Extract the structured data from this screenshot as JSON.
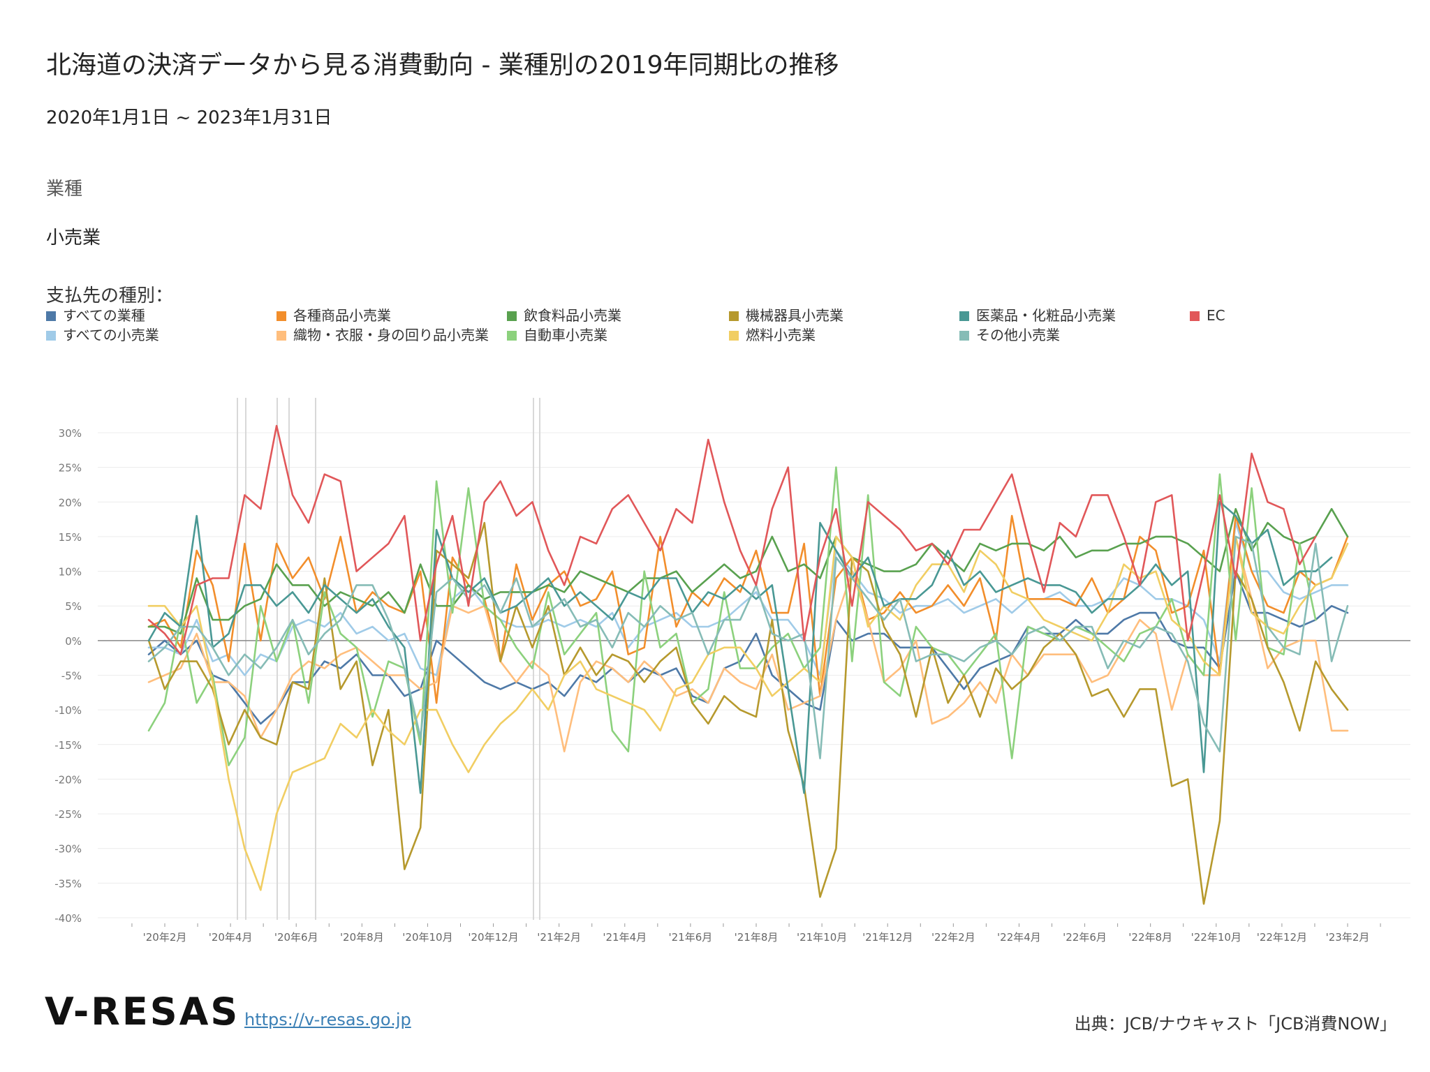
{
  "header": {
    "title": "北海道の決済データから見る消費動向 - 業種別の2019年同期比の推移",
    "period": "2020年1月1日 ~ 2023年1月31日"
  },
  "filter": {
    "label": "業種",
    "value": "小売業"
  },
  "legend": {
    "title": "支払先の種別："
  },
  "footer": {
    "logo": "V-RESAS",
    "link": "https://v-resas.go.jp",
    "source": "出典：JCB/ナウキャスト「JCB消費NOW」"
  },
  "chart_data": {
    "type": "line",
    "y_unit": "%",
    "ylim": [
      -40,
      30
    ],
    "yticks": [
      30,
      25,
      20,
      15,
      10,
      5,
      0,
      -5,
      -10,
      -15,
      -20,
      -25,
      -30,
      -35,
      -40
    ],
    "ytick_labels": [
      "30%",
      "25%",
      "20%",
      "15%",
      "10%",
      "5%",
      "0%",
      "-5%",
      "-10%",
      "-15%",
      "-20%",
      "-25%",
      "-30%",
      "-35%",
      "-40%"
    ],
    "xtick_labels": [
      "'20年2月",
      "'20年4月",
      "'20年6月",
      "'20年8月",
      "'20年10月",
      "'20年12月",
      "'21年2月",
      "'21年4月",
      "'21年6月",
      "'21年8月",
      "'21年10月",
      "'21年12月",
      "'22年2月",
      "'22年4月",
      "'22年6月",
      "'22年8月",
      "'22年10月",
      "'22年12月",
      "'23年2月"
    ],
    "x_start": "2020-01-06",
    "x_period": "weekly",
    "legend_position": "top",
    "series": [
      {
        "name": "すべての業種",
        "color": "#4e79a7",
        "values": [
          -2,
          0,
          -2,
          0,
          -5,
          -6,
          -9,
          -12,
          -10,
          -6,
          -6,
          -3,
          -4,
          -2,
          -5,
          -5,
          -8,
          -7,
          0,
          -2,
          -4,
          -6,
          -7,
          -6,
          -7,
          -6,
          -8,
          -5,
          -6,
          -4,
          -6,
          -4,
          -5,
          -4,
          -8,
          -9,
          -4,
          -3,
          1,
          -5,
          -7,
          -9,
          -10,
          3,
          0,
          1,
          1,
          -1,
          -1,
          -1,
          -4,
          -7,
          -4,
          -3,
          -2,
          2,
          1,
          1,
          3,
          1,
          1,
          3,
          4,
          4,
          0,
          -1,
          -1,
          -4,
          10,
          4,
          4,
          3,
          2,
          3,
          5,
          4
        ]
      },
      {
        "name": "すべての小売業",
        "color": "#a0cbe8",
        "values": [
          -1,
          -1,
          -2,
          3,
          -3,
          -2,
          -5,
          -2,
          -3,
          2,
          3,
          2,
          4,
          1,
          2,
          0,
          1,
          -4,
          -5,
          6,
          8,
          5,
          3,
          2,
          2,
          3,
          2,
          3,
          2,
          4,
          -1,
          2,
          3,
          4,
          2,
          2,
          3,
          5,
          7,
          3,
          3,
          0,
          -5,
          13,
          10,
          7,
          6,
          4,
          5,
          5,
          6,
          4,
          5,
          6,
          4,
          6,
          6,
          7,
          5,
          5,
          6,
          9,
          8,
          6,
          6,
          5,
          3,
          -3,
          17,
          10,
          10,
          7,
          6,
          7,
          8,
          8
        ]
      },
      {
        "name": "各種商品小売業",
        "color": "#f28e2b",
        "values": [
          2,
          3,
          -1,
          13,
          8,
          -3,
          14,
          0,
          14,
          9,
          12,
          6,
          15,
          4,
          7,
          5,
          4,
          10,
          -9,
          12,
          8,
          6,
          -3,
          11,
          3,
          8,
          10,
          5,
          6,
          10,
          -2,
          -1,
          15,
          2,
          7,
          5,
          9,
          7,
          13,
          4,
          4,
          14,
          -8,
          9,
          12,
          3,
          4,
          7,
          4,
          5,
          8,
          5,
          9,
          0,
          18,
          6,
          6,
          6,
          5,
          9,
          4,
          6,
          15,
          13,
          4,
          5,
          13,
          -5,
          18,
          10,
          5,
          4,
          10,
          8,
          9,
          15
        ]
      },
      {
        "name": "織物・衣服・身の回り品小売業",
        "color": "#ffbe7d",
        "values": [
          -6,
          -5,
          -4,
          1,
          -6,
          -6,
          -8,
          -14,
          -10,
          -5,
          -3,
          -4,
          -2,
          -1,
          -3,
          -5,
          -5,
          -7,
          -6,
          5,
          4,
          5,
          -3,
          -6,
          -3,
          -5,
          -16,
          -6,
          -3,
          -4,
          -6,
          -3,
          -5,
          -8,
          -7,
          -9,
          -4,
          -6,
          -7,
          -2,
          -10,
          -9,
          -8,
          3,
          10,
          3,
          -6,
          -4,
          0,
          -12,
          -11,
          -9,
          -6,
          -9,
          -2,
          -5,
          -2,
          -2,
          -2,
          -6,
          -5,
          -1,
          3,
          1,
          -10,
          -2,
          -5,
          -5,
          15,
          6,
          -4,
          -1,
          0,
          0,
          -13,
          -13
        ]
      },
      {
        "name": "飲食料品小売業",
        "color": "#59a14f",
        "values": [
          2,
          2,
          1,
          9,
          3,
          3,
          5,
          6,
          11,
          8,
          8,
          5,
          7,
          6,
          5,
          7,
          4,
          11,
          5,
          5,
          8,
          6,
          7,
          7,
          7,
          8,
          7,
          10,
          9,
          8,
          7,
          9,
          9,
          10,
          7,
          9,
          11,
          9,
          10,
          15,
          10,
          11,
          9,
          15,
          12,
          11,
          10,
          10,
          11,
          14,
          12,
          10,
          14,
          13,
          14,
          14,
          13,
          15,
          12,
          13,
          13,
          14,
          14,
          15,
          15,
          14,
          12,
          10,
          19,
          13,
          17,
          15,
          14,
          15,
          19,
          15
        ]
      },
      {
        "name": "自動車小売業",
        "color": "#8cd17d",
        "values": [
          -13,
          -9,
          3,
          -9,
          -5,
          -18,
          -14,
          5,
          -3,
          3,
          -9,
          7,
          1,
          -1,
          -11,
          -3,
          -4,
          -15,
          23,
          4,
          22,
          5,
          3,
          -1,
          -4,
          7,
          -2,
          1,
          4,
          -13,
          -16,
          10,
          -1,
          1,
          -9,
          -7,
          7,
          -4,
          -4,
          -1,
          1,
          -4,
          -1,
          25,
          -3,
          21,
          -6,
          -8,
          2,
          -1,
          -2,
          -5,
          -2,
          1,
          -17,
          2,
          1,
          0,
          2,
          1,
          -1,
          -3,
          1,
          2,
          6,
          -2,
          -5,
          24,
          0,
          22,
          -1,
          -2,
          14,
          3
        ]
      },
      {
        "name": "機械器具小売業",
        "color": "#b6992d",
        "values": [
          0,
          -7,
          -3,
          -3,
          -7,
          -15,
          -10,
          -14,
          -15,
          -6,
          -7,
          9,
          -7,
          -3,
          -18,
          -10,
          -33,
          -27,
          13,
          11,
          9,
          17,
          -3,
          5,
          -1,
          5,
          -5,
          -1,
          -5,
          -2,
          -3,
          -6,
          -3,
          -1,
          -9,
          -12,
          -8,
          -10,
          -11,
          3,
          -13,
          -21,
          -37,
          -30,
          12,
          10,
          2,
          -2,
          -11,
          -1,
          -9,
          -5,
          -11,
          -4,
          -7,
          -5,
          -1,
          1,
          -2,
          -8,
          -7,
          -11,
          -7,
          -7,
          -21,
          -20,
          -38,
          -26,
          10,
          6,
          -1,
          -6,
          -13,
          -3,
          -7,
          -10
        ]
      },
      {
        "name": "燃料小売業",
        "color": "#f1ce63",
        "values": [
          5,
          5,
          2,
          5,
          -6,
          -20,
          -30,
          -36,
          -25,
          -19,
          -18,
          -17,
          -12,
          -14,
          -10,
          -13,
          -15,
          -10,
          -10,
          -15,
          -19,
          -15,
          -12,
          -10,
          -7,
          -10,
          -5,
          -3,
          -7,
          -8,
          -9,
          -10,
          -13,
          -7,
          -6,
          -2,
          -1,
          -1,
          -4,
          -8,
          -6,
          -4,
          -6,
          15,
          12,
          2,
          5,
          3,
          8,
          11,
          11,
          7,
          13,
          11,
          7,
          6,
          3,
          2,
          1,
          0,
          4,
          11,
          9,
          10,
          3,
          1,
          -3,
          -5,
          15,
          4,
          2,
          1,
          5,
          8,
          9,
          14
        ]
      },
      {
        "name": "医薬品・化粧品小売業",
        "color": "#499894",
        "values": [
          0,
          4,
          2,
          18,
          -1,
          1,
          8,
          8,
          5,
          7,
          4,
          8,
          6,
          4,
          6,
          2,
          -1,
          -22,
          16,
          9,
          7,
          9,
          4,
          5,
          7,
          9,
          5,
          7,
          5,
          3,
          7,
          6,
          9,
          9,
          4,
          7,
          6,
          8,
          6,
          8,
          -7,
          -22,
          17,
          13,
          9,
          12,
          5,
          6,
          6,
          8,
          13,
          8,
          10,
          7,
          8,
          9,
          8,
          8,
          7,
          4,
          6,
          6,
          8,
          11,
          8,
          10,
          -19,
          20,
          18,
          14,
          16,
          8,
          10,
          10,
          12
        ]
      },
      {
        "name": "その他小売業",
        "color": "#86bcb6",
        "values": [
          -3,
          -1,
          2,
          2,
          -1,
          -5,
          -2,
          -4,
          -1,
          3,
          -2,
          1,
          3,
          8,
          8,
          3,
          -4,
          -14,
          7,
          9,
          6,
          8,
          4,
          9,
          2,
          4,
          6,
          2,
          3,
          -1,
          4,
          2,
          5,
          3,
          4,
          -2,
          3,
          3,
          8,
          1,
          0,
          1,
          -17,
          12,
          9,
          6,
          3,
          6,
          -3,
          -2,
          -2,
          -3,
          -1,
          0,
          -2,
          1,
          2,
          0,
          2,
          2,
          -4,
          0,
          -1,
          2,
          1,
          -3,
          -12,
          -16,
          15,
          14,
          2,
          -1,
          -2,
          14,
          -3,
          5
        ]
      },
      {
        "name": "EC",
        "color": "#e15759",
        "values": [
          3,
          1,
          -2,
          8,
          9,
          9,
          21,
          19,
          31,
          21,
          17,
          24,
          23,
          10,
          12,
          14,
          18,
          0,
          11,
          18,
          5,
          20,
          23,
          18,
          20,
          13,
          8,
          15,
          14,
          19,
          21,
          17,
          13,
          19,
          17,
          29,
          20,
          13,
          8,
          19,
          25,
          0,
          12,
          19,
          5,
          20,
          18,
          16,
          13,
          14,
          11,
          16,
          16,
          20,
          24,
          15,
          7,
          17,
          15,
          21,
          21,
          15,
          8,
          20,
          21,
          0,
          10,
          21,
          9,
          27,
          20,
          19,
          11,
          15
        ]
      }
    ],
    "highlight_lines_x": [
      "'20年4月",
      "'20年4月",
      "'20年6月",
      "'20年6月",
      "'20年7月",
      "'21年1月",
      "'21年1月"
    ]
  }
}
